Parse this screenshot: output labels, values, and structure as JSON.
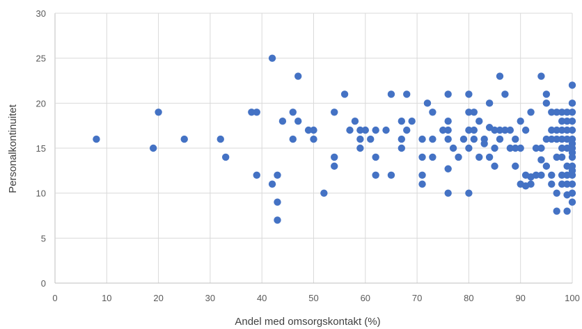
{
  "chart_data": {
    "type": "scatter",
    "title": "",
    "xlabel": "Andel med omsorgskontakt (%)",
    "ylabel": "Personalkontinuitet",
    "xlim": [
      0,
      100
    ],
    "ylim": [
      0,
      30
    ],
    "xticks": [
      0,
      10,
      20,
      30,
      40,
      50,
      60,
      70,
      80,
      90,
      100
    ],
    "yticks": [
      0,
      5,
      10,
      15,
      20,
      25,
      30
    ],
    "grid": true,
    "legend": "none",
    "color": "#4472C4",
    "points": [
      [
        8,
        16
      ],
      [
        19,
        15
      ],
      [
        20,
        19
      ],
      [
        25,
        16
      ],
      [
        32,
        16
      ],
      [
        33,
        14
      ],
      [
        38,
        19
      ],
      [
        39,
        19
      ],
      [
        39,
        12
      ],
      [
        42,
        25
      ],
      [
        42,
        11
      ],
      [
        43,
        12
      ],
      [
        43,
        9
      ],
      [
        43,
        7
      ],
      [
        44,
        18
      ],
      [
        46,
        19
      ],
      [
        46,
        16
      ],
      [
        47,
        23
      ],
      [
        47,
        18
      ],
      [
        49,
        17
      ],
      [
        50,
        17
      ],
      [
        50,
        16
      ],
      [
        52,
        10
      ],
      [
        54,
        19
      ],
      [
        54,
        14
      ],
      [
        54,
        13
      ],
      [
        56,
        21
      ],
      [
        57,
        17
      ],
      [
        58,
        18
      ],
      [
        59,
        17
      ],
      [
        59,
        16
      ],
      [
        59,
        15
      ],
      [
        60,
        17
      ],
      [
        61,
        16
      ],
      [
        62,
        17
      ],
      [
        62,
        14
      ],
      [
        62,
        12
      ],
      [
        64,
        17
      ],
      [
        65,
        21
      ],
      [
        65,
        12
      ],
      [
        67,
        18
      ],
      [
        67,
        16
      ],
      [
        67,
        15
      ],
      [
        68,
        21
      ],
      [
        68,
        17
      ],
      [
        69,
        18
      ],
      [
        71,
        16
      ],
      [
        71,
        14
      ],
      [
        71,
        12
      ],
      [
        71,
        11
      ],
      [
        72,
        20
      ],
      [
        73,
        19
      ],
      [
        73,
        16
      ],
      [
        73,
        14
      ],
      [
        75,
        17
      ],
      [
        76,
        21
      ],
      [
        76,
        18
      ],
      [
        76,
        17
      ],
      [
        76,
        16
      ],
      [
        76,
        12.7
      ],
      [
        76,
        10
      ],
      [
        77,
        15
      ],
      [
        78,
        14
      ],
      [
        79,
        16
      ],
      [
        80,
        21
      ],
      [
        80,
        19
      ],
      [
        80,
        17
      ],
      [
        80,
        15
      ],
      [
        80,
        10
      ],
      [
        81,
        19
      ],
      [
        81,
        17
      ],
      [
        81,
        16
      ],
      [
        82,
        18
      ],
      [
        82,
        14
      ],
      [
        83,
        16
      ],
      [
        83,
        15.5
      ],
      [
        84,
        20
      ],
      [
        84,
        17.3
      ],
      [
        84,
        14
      ],
      [
        85,
        17
      ],
      [
        85,
        15
      ],
      [
        85,
        13
      ],
      [
        86,
        23
      ],
      [
        86,
        17
      ],
      [
        86,
        16
      ],
      [
        87,
        21
      ],
      [
        87,
        17
      ],
      [
        88,
        17
      ],
      [
        88,
        15
      ],
      [
        89,
        16
      ],
      [
        89,
        15
      ],
      [
        89,
        13
      ],
      [
        90,
        18
      ],
      [
        90,
        15
      ],
      [
        90,
        11
      ],
      [
        91,
        17
      ],
      [
        91,
        12
      ],
      [
        91,
        10.8
      ],
      [
        92,
        19
      ],
      [
        92,
        11.8
      ],
      [
        92,
        11
      ],
      [
        93,
        15
      ],
      [
        93,
        12
      ],
      [
        94,
        23
      ],
      [
        94,
        15
      ],
      [
        94,
        13.7
      ],
      [
        94,
        12
      ],
      [
        95,
        21
      ],
      [
        95,
        20
      ],
      [
        95,
        16
      ],
      [
        95,
        13
      ],
      [
        96,
        19
      ],
      [
        96,
        17
      ],
      [
        96,
        16
      ],
      [
        96,
        12
      ],
      [
        96,
        11
      ],
      [
        97,
        19
      ],
      [
        97,
        17
      ],
      [
        97,
        16
      ],
      [
        97,
        14
      ],
      [
        97,
        10
      ],
      [
        97,
        8
      ],
      [
        98,
        19
      ],
      [
        98,
        18
      ],
      [
        98,
        17
      ],
      [
        98,
        16
      ],
      [
        98,
        15
      ],
      [
        98,
        14
      ],
      [
        98,
        12
      ],
      [
        98,
        11
      ],
      [
        99,
        19
      ],
      [
        99,
        18
      ],
      [
        99,
        17
      ],
      [
        99,
        16
      ],
      [
        99,
        15
      ],
      [
        99,
        13
      ],
      [
        99,
        12
      ],
      [
        99,
        11
      ],
      [
        99,
        9.8
      ],
      [
        99,
        8
      ],
      [
        100,
        22
      ],
      [
        100,
        20
      ],
      [
        100,
        19
      ],
      [
        100,
        18
      ],
      [
        100,
        17
      ],
      [
        100,
        16
      ],
      [
        100,
        15.5
      ],
      [
        100,
        15
      ],
      [
        100,
        14.5
      ],
      [
        100,
        14
      ],
      [
        100,
        13
      ],
      [
        100,
        12.5
      ],
      [
        100,
        12
      ],
      [
        100,
        11
      ],
      [
        100,
        10
      ],
      [
        100,
        9
      ]
    ]
  }
}
